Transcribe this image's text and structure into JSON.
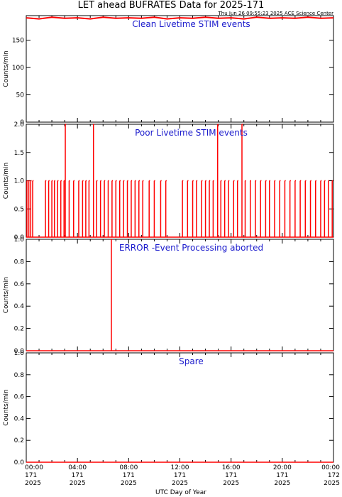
{
  "title": "LET ahead BUFRATES Data for 2025-171",
  "timestamp": "Thu Jun 26 09:55:23 2025 ACE Science Center",
  "xlabel": "UTC Day of Year",
  "x_ticks": [
    {
      "time": "00:00",
      "doy": "171",
      "year": "2025"
    },
    {
      "time": "04:00",
      "doy": "171",
      "year": "2025"
    },
    {
      "time": "08:00",
      "doy": "171",
      "year": "2025"
    },
    {
      "time": "12:00",
      "doy": "171",
      "year": "2025"
    },
    {
      "time": "16:00",
      "doy": "171",
      "year": "2025"
    },
    {
      "time": "20:00",
      "doy": "171",
      "year": "2025"
    },
    {
      "time": "00:00",
      "doy": "172",
      "year": "2025"
    }
  ],
  "colors": {
    "line": "#ff0000",
    "panel_title": "#1a1acc",
    "axis": "#000000"
  },
  "chart_data": [
    {
      "type": "line",
      "title": "Clean Livetime STIM events",
      "ylabel": "Counts/min",
      "xlim": [
        0,
        24
      ],
      "ylim": [
        0,
        195
      ],
      "yticks": [
        "0",
        "50",
        "100",
        "150"
      ],
      "ytick_values": [
        0,
        50,
        100,
        150
      ],
      "series": [
        {
          "x": [
            0,
            1,
            2,
            3,
            4,
            5,
            6,
            7,
            8,
            9,
            10,
            11,
            12,
            13,
            14,
            15,
            16,
            17,
            18,
            19,
            20,
            21,
            22,
            23,
            24
          ],
          "values": [
            191,
            189,
            192,
            190,
            191,
            189,
            192,
            190,
            191,
            190,
            192,
            189,
            191,
            190,
            192,
            190,
            191,
            189,
            192,
            190,
            191,
            190,
            192,
            190,
            191
          ]
        }
      ]
    },
    {
      "type": "line",
      "title": "Poor Livetime STIM events",
      "ylabel": "Counts/min",
      "xlim": [
        0,
        24
      ],
      "ylim": [
        0,
        2
      ],
      "yticks": [
        "0.0",
        "0.5",
        "1.0",
        "1.5",
        "2.0"
      ],
      "ytick_values": [
        0,
        0.5,
        1,
        1.5,
        2
      ],
      "series": [
        {
          "spikes": [
            {
              "x": 0.05,
              "y": 1
            },
            {
              "x": 0.2,
              "y": 1
            },
            {
              "x": 0.35,
              "y": 1
            },
            {
              "x": 0.5,
              "y": 1
            },
            {
              "x": 1.5,
              "y": 1
            },
            {
              "x": 1.75,
              "y": 1
            },
            {
              "x": 2.0,
              "y": 1
            },
            {
              "x": 2.2,
              "y": 1
            },
            {
              "x": 2.45,
              "y": 1
            },
            {
              "x": 2.7,
              "y": 1
            },
            {
              "x": 2.95,
              "y": 1
            },
            {
              "x": 3.05,
              "y": 2
            },
            {
              "x": 3.35,
              "y": 1
            },
            {
              "x": 3.7,
              "y": 1
            },
            {
              "x": 4.1,
              "y": 1
            },
            {
              "x": 4.4,
              "y": 1
            },
            {
              "x": 4.65,
              "y": 1
            },
            {
              "x": 4.9,
              "y": 1
            },
            {
              "x": 5.25,
              "y": 2
            },
            {
              "x": 5.5,
              "y": 1
            },
            {
              "x": 5.8,
              "y": 1
            },
            {
              "x": 6.1,
              "y": 1
            },
            {
              "x": 6.4,
              "y": 1
            },
            {
              "x": 6.7,
              "y": 1
            },
            {
              "x": 7.0,
              "y": 1
            },
            {
              "x": 7.3,
              "y": 1
            },
            {
              "x": 7.6,
              "y": 1
            },
            {
              "x": 7.9,
              "y": 1
            },
            {
              "x": 8.2,
              "y": 1
            },
            {
              "x": 8.5,
              "y": 1
            },
            {
              "x": 8.8,
              "y": 1
            },
            {
              "x": 9.1,
              "y": 1
            },
            {
              "x": 9.6,
              "y": 1
            },
            {
              "x": 10.0,
              "y": 1
            },
            {
              "x": 10.5,
              "y": 1
            },
            {
              "x": 10.9,
              "y": 1
            },
            {
              "x": 12.2,
              "y": 1
            },
            {
              "x": 12.6,
              "y": 1
            },
            {
              "x": 13.0,
              "y": 1
            },
            {
              "x": 13.3,
              "y": 1
            },
            {
              "x": 13.7,
              "y": 1
            },
            {
              "x": 14.0,
              "y": 1
            },
            {
              "x": 14.3,
              "y": 1
            },
            {
              "x": 14.6,
              "y": 1
            },
            {
              "x": 14.95,
              "y": 2
            },
            {
              "x": 15.2,
              "y": 1
            },
            {
              "x": 15.5,
              "y": 1
            },
            {
              "x": 15.8,
              "y": 1
            },
            {
              "x": 16.2,
              "y": 1
            },
            {
              "x": 16.5,
              "y": 1
            },
            {
              "x": 16.85,
              "y": 2
            },
            {
              "x": 17.1,
              "y": 1
            },
            {
              "x": 17.5,
              "y": 1
            },
            {
              "x": 17.9,
              "y": 1
            },
            {
              "x": 18.3,
              "y": 1
            },
            {
              "x": 18.7,
              "y": 1
            },
            {
              "x": 19.0,
              "y": 1
            },
            {
              "x": 19.4,
              "y": 1
            },
            {
              "x": 19.8,
              "y": 1
            },
            {
              "x": 20.2,
              "y": 1
            },
            {
              "x": 20.6,
              "y": 1
            },
            {
              "x": 21.0,
              "y": 1
            },
            {
              "x": 21.4,
              "y": 1
            },
            {
              "x": 21.8,
              "y": 1
            },
            {
              "x": 22.2,
              "y": 1
            },
            {
              "x": 22.6,
              "y": 1
            },
            {
              "x": 23.0,
              "y": 1
            },
            {
              "x": 23.3,
              "y": 1
            },
            {
              "x": 23.6,
              "y": 1
            },
            {
              "x": 23.9,
              "y": 1
            }
          ]
        }
      ]
    },
    {
      "type": "line",
      "title": "ERROR -Event Processing aborted",
      "ylabel": "Counts/min",
      "xlim": [
        0,
        24
      ],
      "ylim": [
        0,
        1
      ],
      "yticks": [
        "0.0",
        "0.2",
        "0.4",
        "0.6",
        "0.8",
        "1.0"
      ],
      "ytick_values": [
        0,
        0.2,
        0.4,
        0.6,
        0.8,
        1
      ],
      "series": [
        {
          "spikes": [
            {
              "x": 6.65,
              "y": 1
            }
          ]
        }
      ]
    },
    {
      "type": "line",
      "title": "Spare",
      "ylabel": "Counts/min",
      "xlim": [
        0,
        24
      ],
      "ylim": [
        0,
        1
      ],
      "yticks": [
        "0.0",
        "0.2",
        "0.4",
        "0.6",
        "0.8",
        "1.0"
      ],
      "ytick_values": [
        0,
        0.2,
        0.4,
        0.6,
        0.8,
        1
      ],
      "series": [
        {
          "spikes": []
        }
      ]
    }
  ]
}
